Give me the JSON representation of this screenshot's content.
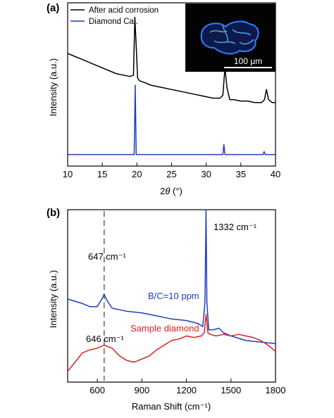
{
  "chart_data": [
    {
      "panel": "(a)",
      "type": "line",
      "xlabel_prefix": "2",
      "xlabel_symbol": "θ",
      "xlabel_suffix": " (°)",
      "ylabel": "Intensity (a.u.)",
      "xlim": [
        10,
        40
      ],
      "x_ticks": [
        "10",
        "15",
        "20",
        "25",
        "30",
        "35",
        "40"
      ],
      "y_ticks": "none",
      "legend_position": "top-left",
      "inset": {
        "scale_label": "100 μm"
      },
      "series": [
        {
          "name": "After acid corrosion",
          "color": "#000000",
          "x": [
            10,
            11,
            12,
            13,
            14,
            15,
            16,
            17,
            18,
            19,
            19.5,
            19.7,
            19.9,
            20.1,
            20.4,
            21,
            22,
            23,
            24,
            25,
            26,
            27,
            28,
            29,
            30,
            31,
            32,
            32.4,
            32.7,
            33,
            33.4,
            34,
            35,
            36,
            37,
            38,
            38.4,
            38.7,
            39,
            39.5,
            40
          ],
          "values": [
            0.7,
            0.68,
            0.66,
            0.64,
            0.62,
            0.6,
            0.58,
            0.56,
            0.55,
            0.54,
            0.55,
            0.95,
            0.75,
            0.53,
            0.51,
            0.5,
            0.48,
            0.47,
            0.46,
            0.45,
            0.44,
            0.43,
            0.42,
            0.41,
            0.4,
            0.39,
            0.39,
            0.41,
            0.6,
            0.46,
            0.38,
            0.38,
            0.37,
            0.37,
            0.36,
            0.36,
            0.38,
            0.45,
            0.38,
            0.36,
            0.36
          ]
        },
        {
          "name": "Diamond Cal.",
          "color": "#1f3fbf",
          "x": [
            10,
            19.6,
            19.75,
            19.9,
            20.1,
            32.4,
            32.55,
            32.7,
            32.85,
            38.2,
            38.35,
            38.5,
            40
          ],
          "values": [
            0.0,
            0.0,
            0.48,
            0.0,
            0.0,
            0.0,
            0.07,
            0.0,
            0.0,
            0.0,
            0.02,
            0.0,
            0.0
          ]
        }
      ]
    },
    {
      "panel": "(b)",
      "type": "line",
      "xlabel": "Raman Shift (cm⁻¹)",
      "ylabel": "Intensity (a.u.)",
      "xlim": [
        400,
        1800
      ],
      "x_ticks": [
        "600",
        "900",
        "1200",
        "1500",
        "1800"
      ],
      "y_ticks": "none",
      "annotations": [
        {
          "text": "1332 cm⁻¹"
        },
        {
          "text": "647 cm⁻¹"
        },
        {
          "text": "646 cm⁻¹"
        }
      ],
      "reference_line": {
        "x": 646,
        "style": "dashed",
        "color": "#888888"
      },
      "series": [
        {
          "name": "B/C=10 ppm",
          "color": "#1f3fbf",
          "x": [
            400,
            500,
            550,
            600,
            630,
            646,
            665,
            700,
            750,
            800,
            900,
            1000,
            1100,
            1200,
            1280,
            1310,
            1325,
            1332,
            1338,
            1350,
            1380,
            1420,
            1450,
            1500,
            1600,
            1700,
            1800
          ],
          "values": [
            0.42,
            0.39,
            0.37,
            0.37,
            0.42,
            0.45,
            0.41,
            0.36,
            0.35,
            0.34,
            0.33,
            0.31,
            0.29,
            0.28,
            0.26,
            0.24,
            0.4,
            1.0,
            0.4,
            0.22,
            0.22,
            0.23,
            0.2,
            0.18,
            0.15,
            0.14,
            0.13
          ]
        },
        {
          "name": "Sample diamond",
          "color": "#e02020",
          "x": [
            400,
            450,
            500,
            550,
            600,
            646,
            700,
            750,
            800,
            850,
            900,
            950,
            1000,
            1050,
            1100,
            1150,
            1200,
            1250,
            1300,
            1320,
            1332,
            1345,
            1360,
            1400,
            1450,
            1500,
            1550,
            1600,
            1650,
            1700,
            1750,
            1800
          ],
          "values": [
            -0.05,
            0.01,
            0.07,
            0.09,
            0.1,
            0.12,
            0.1,
            0.05,
            0.02,
            0.01,
            0.03,
            0.05,
            0.09,
            0.12,
            0.15,
            0.16,
            0.18,
            0.17,
            0.18,
            0.2,
            0.32,
            0.2,
            0.19,
            0.18,
            0.19,
            0.18,
            0.19,
            0.18,
            0.17,
            0.15,
            0.12,
            0.08
          ]
        }
      ]
    }
  ]
}
